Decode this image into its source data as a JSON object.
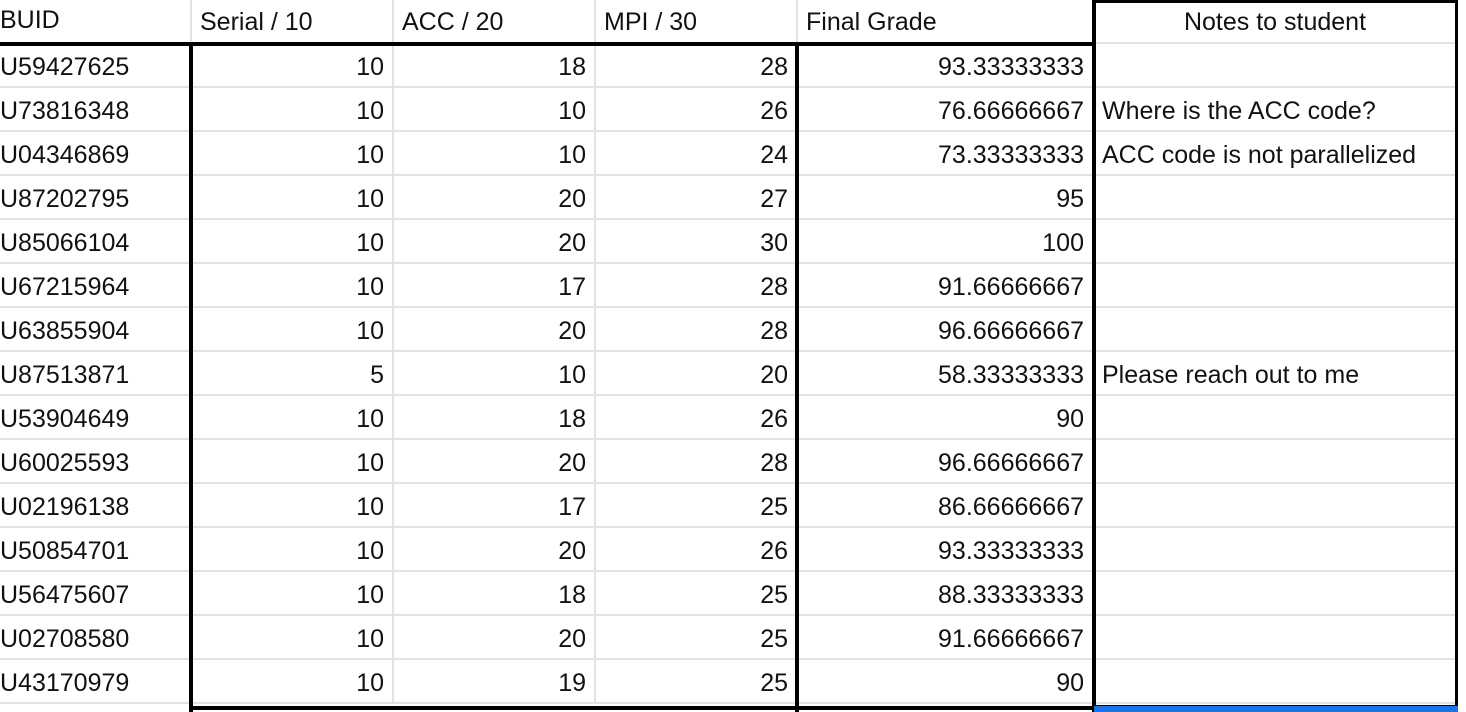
{
  "columns": [
    "BUID",
    "Serial / 10",
    "ACC / 20",
    "MPI / 30",
    "Final Grade",
    "Notes to student"
  ],
  "rows": [
    {
      "buid": "U59427625",
      "serial": "10",
      "acc": "18",
      "mpi": "28",
      "final": "93.33333333",
      "note": ""
    },
    {
      "buid": "U73816348",
      "serial": "10",
      "acc": "10",
      "mpi": "26",
      "final": "76.66666667",
      "note": "Where is the ACC code?"
    },
    {
      "buid": "U04346869",
      "serial": "10",
      "acc": "10",
      "mpi": "24",
      "final": "73.33333333",
      "note": "ACC code is not parallelized"
    },
    {
      "buid": "U87202795",
      "serial": "10",
      "acc": "20",
      "mpi": "27",
      "final": "95",
      "note": ""
    },
    {
      "buid": "U85066104",
      "serial": "10",
      "acc": "20",
      "mpi": "30",
      "final": "100",
      "note": ""
    },
    {
      "buid": "U67215964",
      "serial": "10",
      "acc": "17",
      "mpi": "28",
      "final": "91.66666667",
      "note": ""
    },
    {
      "buid": "U63855904",
      "serial": "10",
      "acc": "20",
      "mpi": "28",
      "final": "96.66666667",
      "note": ""
    },
    {
      "buid": "U87513871",
      "serial": "5",
      "acc": "10",
      "mpi": "20",
      "final": "58.33333333",
      "note": "Please reach out to me"
    },
    {
      "buid": "U53904649",
      "serial": "10",
      "acc": "18",
      "mpi": "26",
      "final": "90",
      "note": ""
    },
    {
      "buid": "U60025593",
      "serial": "10",
      "acc": "20",
      "mpi": "28",
      "final": "96.66666667",
      "note": ""
    },
    {
      "buid": "U02196138",
      "serial": "10",
      "acc": "17",
      "mpi": "25",
      "final": "86.66666667",
      "note": ""
    },
    {
      "buid": "U50854701",
      "serial": "10",
      "acc": "20",
      "mpi": "26",
      "final": "93.33333333",
      "note": ""
    },
    {
      "buid": "U56475607",
      "serial": "10",
      "acc": "18",
      "mpi": "25",
      "final": "88.33333333",
      "note": ""
    },
    {
      "buid": "U02708580",
      "serial": "10",
      "acc": "20",
      "mpi": "25",
      "final": "91.66666667",
      "note": ""
    },
    {
      "buid": "U43170979",
      "serial": "10",
      "acc": "19",
      "mpi": "25",
      "final": "90",
      "note": ""
    }
  ],
  "colors": {
    "grid_line": "#e3e3e3",
    "border": "#000000",
    "selection": "#1a73e8",
    "text": "#111111"
  }
}
